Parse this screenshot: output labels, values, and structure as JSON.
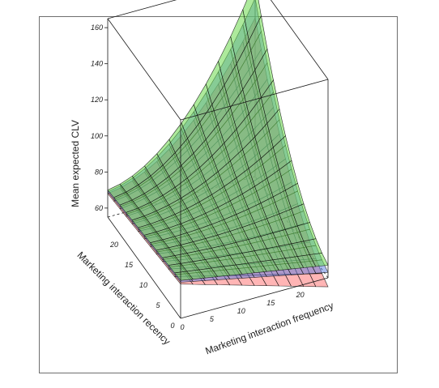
{
  "chart_data": {
    "type": "surface3d",
    "title": "",
    "xlabel": "Marketing interaction frequency",
    "ylabel": "Marketing interaction recency",
    "zlabel": "Mean expected CLV",
    "xlim": [
      0,
      25
    ],
    "ylim": [
      0,
      25
    ],
    "zlim": [
      55,
      165
    ],
    "x_ticks": [
      0,
      5,
      10,
      15,
      20
    ],
    "y_ticks": [
      0,
      5,
      10,
      15,
      20
    ],
    "z_ticks": [
      60,
      80,
      100,
      120,
      140,
      160
    ],
    "grid_n": 12,
    "surfaces": [
      {
        "color": "#ff6b6b",
        "corners": {
          "f0_r0": 74,
          "f25_r0": 50,
          "f25_r25": 77,
          "f0_r25": 68
        },
        "curvature": 30
      },
      {
        "color": "#5a7ce0",
        "corners": {
          "f0_r0": 75,
          "f25_r0": 58,
          "f25_r25": 79,
          "f0_r25": 69
        },
        "curvature": 34
      },
      {
        "color": "#6ad94a",
        "corners": {
          "f0_r0": 76,
          "f25_r0": 62,
          "f25_r25": 80,
          "f0_r25": 70
        },
        "curvature": 38
      }
    ]
  }
}
